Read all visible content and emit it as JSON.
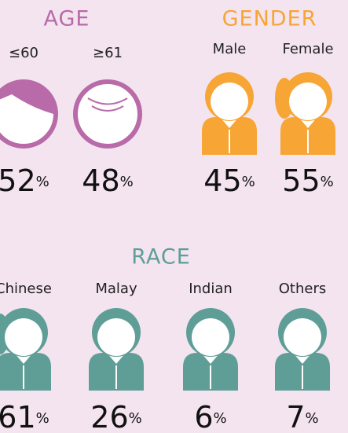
{
  "sections": [
    {
      "title": "AGE",
      "items": [
        {
          "label": "≤60",
          "value": 52,
          "unit": "%"
        },
        {
          "label": "≥61",
          "value": 48,
          "unit": "%"
        }
      ]
    },
    {
      "title": "GENDER",
      "items": [
        {
          "label": "Male",
          "value": 45,
          "unit": "%"
        },
        {
          "label": "Female",
          "value": 55,
          "unit": "%"
        }
      ]
    },
    {
      "title": "RACE",
      "items": [
        {
          "label": "Chinese",
          "value": 61,
          "unit": "%"
        },
        {
          "label": "Malay",
          "value": 26,
          "unit": "%"
        },
        {
          "label": "Indian",
          "value": 6,
          "unit": "%"
        },
        {
          "label": "Others",
          "value": 7,
          "unit": "%"
        }
      ]
    }
  ]
}
